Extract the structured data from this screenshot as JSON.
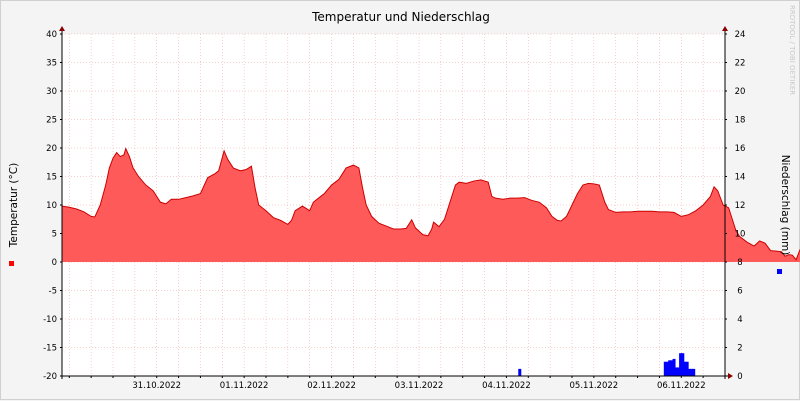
{
  "chart_data": {
    "type": "area",
    "title": "Temperatur und Niederschlag",
    "y_left_label": "Temperatur (°C)",
    "y_right_label": "Niederschlag (mm)",
    "watermark": "RRDTOOL / TOBI OETIKER",
    "y_left_range": [
      -20,
      40
    ],
    "y_left_ticks": [
      "40",
      "35",
      "30",
      "25",
      "20",
      "15",
      "10",
      "5",
      "0",
      "-5",
      "-10",
      "-15",
      "-20"
    ],
    "y_right_range": [
      0,
      24
    ],
    "y_right_ticks": [
      "24",
      "22",
      "20",
      "18",
      "16",
      "14",
      "12",
      "10",
      "8",
      "6",
      "4",
      "2",
      "0"
    ],
    "x_range": [
      "2022-10-30T10:00",
      "2022-11-07T00:00"
    ],
    "x_tick_labels": [
      "31.10.2022",
      "01.11.2022",
      "02.11.2022",
      "03.11.2022",
      "04.11.2022",
      "05.11.2022",
      "06.11.2022"
    ],
    "grid": true,
    "colors": {
      "temperature_fill": "#ff5a5a",
      "temperature_line": "#cc0000",
      "precip": "#0000ff",
      "grid": "#f0a0a0",
      "background": "#ffffff"
    },
    "series": [
      {
        "name": "Temperatur",
        "axis": "left",
        "values": [
          [
            0.0,
            9.8
          ],
          [
            2.0,
            9.6
          ],
          [
            4.0,
            9.3
          ],
          [
            6.0,
            8.8
          ],
          [
            8.0,
            8.0
          ],
          [
            9.0,
            7.9
          ],
          [
            10.5,
            10.0
          ],
          [
            12.0,
            13.5
          ],
          [
            13.0,
            16.5
          ],
          [
            14.0,
            18.2
          ],
          [
            15.0,
            19.2
          ],
          [
            16.0,
            18.5
          ],
          [
            17.0,
            18.8
          ],
          [
            17.5,
            19.9
          ],
          [
            18.5,
            18.5
          ],
          [
            19.5,
            16.5
          ],
          [
            21.0,
            15.0
          ],
          [
            23.0,
            13.5
          ],
          [
            25.0,
            12.5
          ],
          [
            27.0,
            10.5
          ],
          [
            28.5,
            10.2
          ],
          [
            30.0,
            11.0
          ],
          [
            32.0,
            11.0
          ],
          [
            34.0,
            11.3
          ],
          [
            36.0,
            11.6
          ],
          [
            38.0,
            12.0
          ],
          [
            40.0,
            14.8
          ],
          [
            42.0,
            15.5
          ],
          [
            43.0,
            16.0
          ],
          [
            44.5,
            19.5
          ],
          [
            45.5,
            18.0
          ],
          [
            47.0,
            16.5
          ],
          [
            49.0,
            16.0
          ],
          [
            50.5,
            16.2
          ],
          [
            52.0,
            16.8
          ],
          [
            53.0,
            13.0
          ],
          [
            54.0,
            10.0
          ],
          [
            56.0,
            9.0
          ],
          [
            58.0,
            7.8
          ],
          [
            60.0,
            7.3
          ],
          [
            62.0,
            6.6
          ],
          [
            63.0,
            7.3
          ],
          [
            64.0,
            9.0
          ],
          [
            66.0,
            9.8
          ],
          [
            68.0,
            9.0
          ],
          [
            69.0,
            10.5
          ],
          [
            71.0,
            11.5
          ],
          [
            72.0,
            12.0
          ],
          [
            74.0,
            13.5
          ],
          [
            76.0,
            14.5
          ],
          [
            78.0,
            16.5
          ],
          [
            80.0,
            17.0
          ],
          [
            81.5,
            16.5
          ],
          [
            82.5,
            13.0
          ],
          [
            83.5,
            10.0
          ],
          [
            85.0,
            8.0
          ],
          [
            87.0,
            6.8
          ],
          [
            89.0,
            6.3
          ],
          [
            91.0,
            5.8
          ],
          [
            93.0,
            5.8
          ],
          [
            94.5,
            5.9
          ],
          [
            96.0,
            7.4
          ],
          [
            97.0,
            6.0
          ],
          [
            99.0,
            4.8
          ],
          [
            100.5,
            4.6
          ],
          [
            101.5,
            5.8
          ],
          [
            102.0,
            7.0
          ],
          [
            103.5,
            6.2
          ],
          [
            105.0,
            7.5
          ],
          [
            107.0,
            11.5
          ],
          [
            108.0,
            13.5
          ],
          [
            109.0,
            14.0
          ],
          [
            111.0,
            13.8
          ],
          [
            113.0,
            14.2
          ],
          [
            115.0,
            14.4
          ],
          [
            117.0,
            14.0
          ],
          [
            118.0,
            11.5
          ],
          [
            119.0,
            11.2
          ],
          [
            121.0,
            11.0
          ],
          [
            123.0,
            11.2
          ],
          [
            125.0,
            11.2
          ],
          [
            127.0,
            11.3
          ],
          [
            129.0,
            10.8
          ],
          [
            131.0,
            10.5
          ],
          [
            133.0,
            9.5
          ],
          [
            134.5,
            8.0
          ],
          [
            136.0,
            7.3
          ],
          [
            137.0,
            7.2
          ],
          [
            138.5,
            8.0
          ],
          [
            140.0,
            10.0
          ],
          [
            141.5,
            12.0
          ],
          [
            143.0,
            13.5
          ],
          [
            144.5,
            13.8
          ],
          [
            146.0,
            13.7
          ],
          [
            147.5,
            13.5
          ],
          [
            149.0,
            10.5
          ],
          [
            150.0,
            9.2
          ],
          [
            152.0,
            8.7
          ],
          [
            154.0,
            8.8
          ],
          [
            156.0,
            8.8
          ],
          [
            158.0,
            8.9
          ],
          [
            160.0,
            8.9
          ],
          [
            162.0,
            8.9
          ],
          [
            164.0,
            8.8
          ],
          [
            166.0,
            8.8
          ],
          [
            168.0,
            8.7
          ],
          [
            170.0,
            8.0
          ],
          [
            172.0,
            8.3
          ],
          [
            174.0,
            9.0
          ],
          [
            176.0,
            10.0
          ],
          [
            178.0,
            11.5
          ],
          [
            179.0,
            13.2
          ],
          [
            180.0,
            12.5
          ],
          [
            181.5,
            10.0
          ],
          [
            183.0,
            9.5
          ],
          [
            184.0,
            7.5
          ],
          [
            185.0,
            5.5
          ],
          [
            186.0,
            4.5
          ],
          [
            188.0,
            3.5
          ],
          [
            190.0,
            2.8
          ],
          [
            191.5,
            3.7
          ],
          [
            193.0,
            3.3
          ],
          [
            194.5,
            2.0
          ],
          [
            196.0,
            1.9
          ],
          [
            197.5,
            1.8
          ],
          [
            198.5,
            1.0
          ],
          [
            199.5,
            1.3
          ],
          [
            200.5,
            1.2
          ],
          [
            201.5,
            0.4
          ],
          [
            202.5,
            2.0
          ],
          [
            204.0,
            4.0
          ],
          [
            205.5,
            9.0
          ],
          [
            207.0,
            12.5
          ],
          [
            208.5,
            14.0
          ],
          [
            209.5,
            14.5
          ],
          [
            210.5,
            13.0
          ],
          [
            212.0,
            12.0
          ],
          [
            214.0,
            10.5
          ],
          [
            216.0,
            9.5
          ],
          [
            218.0,
            8.0
          ],
          [
            219.5,
            7.7
          ],
          [
            221.0,
            8.0
          ],
          [
            222.0,
            9.5
          ],
          [
            223.0,
            10.5
          ],
          [
            224.0,
            10.7
          ],
          [
            225.0,
            9.5
          ],
          [
            226.0,
            8.5
          ]
        ]
      },
      {
        "name": "Niederschlag",
        "axis": "right",
        "type": "bar",
        "values": [
          [
            125.25,
            0.5
          ],
          [
            165.2,
            1.0
          ],
          [
            165.8,
            1.0
          ],
          [
            166.4,
            1.1
          ],
          [
            167.0,
            1.1
          ],
          [
            167.6,
            1.2
          ],
          [
            168.2,
            0.6
          ],
          [
            168.8,
            0.6
          ],
          [
            169.4,
            1.6
          ],
          [
            170.0,
            1.6
          ],
          [
            170.6,
            1.0
          ],
          [
            171.2,
            1.0
          ],
          [
            171.8,
            0.5
          ],
          [
            172.4,
            0.5
          ],
          [
            173.0,
            0.5
          ]
        ]
      }
    ]
  }
}
